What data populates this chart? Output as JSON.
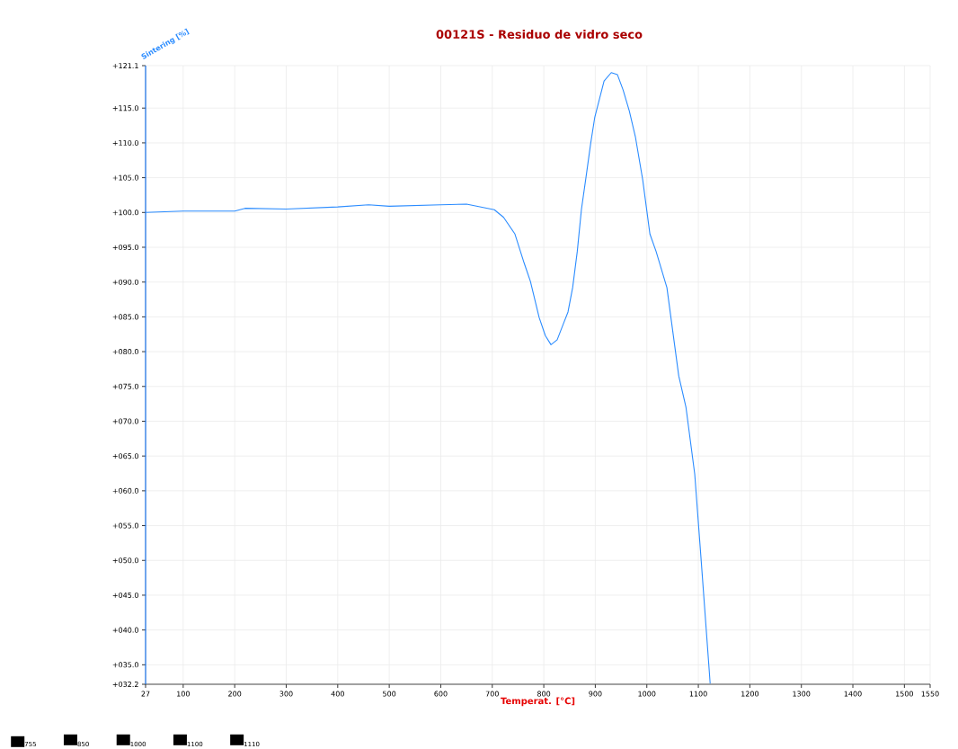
{
  "chart_data": {
    "type": "line",
    "title": "00121S - Residuo de vidro seco",
    "xlabel": "Temperat. [°C]",
    "ylabel": "Sintering [%]",
    "x": [
      27,
      100,
      200,
      220,
      300,
      400,
      460,
      500,
      600,
      650,
      704,
      722,
      744,
      762,
      774,
      791,
      803,
      814,
      826,
      838,
      847,
      856,
      865,
      873,
      882,
      891,
      899,
      908,
      917,
      931,
      943,
      954,
      966,
      978,
      992,
      1006,
      1018,
      1039,
      1062,
      1076,
      1093,
      1106,
      1123
    ],
    "series": [
      {
        "color": "#2b8cff",
        "values": [
          100.0,
          100.2,
          100.2,
          100.6,
          100.5,
          100.8,
          101.1,
          100.9,
          101.1,
          101.2,
          100.4,
          99.3,
          96.9,
          92.7,
          90.1,
          84.9,
          82.3,
          81.0,
          81.7,
          84.0,
          85.7,
          89.2,
          94.4,
          100.4,
          105.1,
          109.9,
          113.7,
          116.3,
          118.9,
          120.1,
          119.8,
          117.6,
          114.6,
          110.8,
          104.7,
          96.9,
          94.4,
          89.2,
          76.5,
          72.0,
          62.4,
          49.5,
          32.3
        ]
      }
    ],
    "xlim": [
      27,
      1550
    ],
    "ylim": [
      32.2,
      121.1
    ],
    "xticks": [
      27,
      100,
      200,
      300,
      400,
      500,
      600,
      700,
      800,
      900,
      1000,
      1100,
      1200,
      1300,
      1400,
      1500,
      1550
    ],
    "yticks": [
      {
        "value": 32.2,
        "label": "+032.2"
      },
      {
        "value": 35,
        "label": "+035.0"
      },
      {
        "value": 40,
        "label": "+040.0"
      },
      {
        "value": 45,
        "label": "+045.0"
      },
      {
        "value": 50,
        "label": "+050.0"
      },
      {
        "value": 55,
        "label": "+055.0"
      },
      {
        "value": 60,
        "label": "+060.0"
      },
      {
        "value": 65,
        "label": "+065.0"
      },
      {
        "value": 70,
        "label": "+070.0"
      },
      {
        "value": 75,
        "label": "+075.0"
      },
      {
        "value": 80,
        "label": "+080.0"
      },
      {
        "value": 85,
        "label": "+085.0"
      },
      {
        "value": 90,
        "label": "+090.0"
      },
      {
        "value": 95,
        "label": "+095.0"
      },
      {
        "value": 100,
        "label": "+100.0"
      },
      {
        "value": 105,
        "label": "+105.0"
      },
      {
        "value": 110,
        "label": "+110.0"
      },
      {
        "value": 115,
        "label": "+115.0"
      },
      {
        "value": 121.1,
        "label": "+121.1"
      }
    ],
    "grid": true,
    "marker": "none",
    "line_style": "solid",
    "annotations": [
      "755",
      "850",
      "1000",
      "1100",
      "1110"
    ]
  }
}
